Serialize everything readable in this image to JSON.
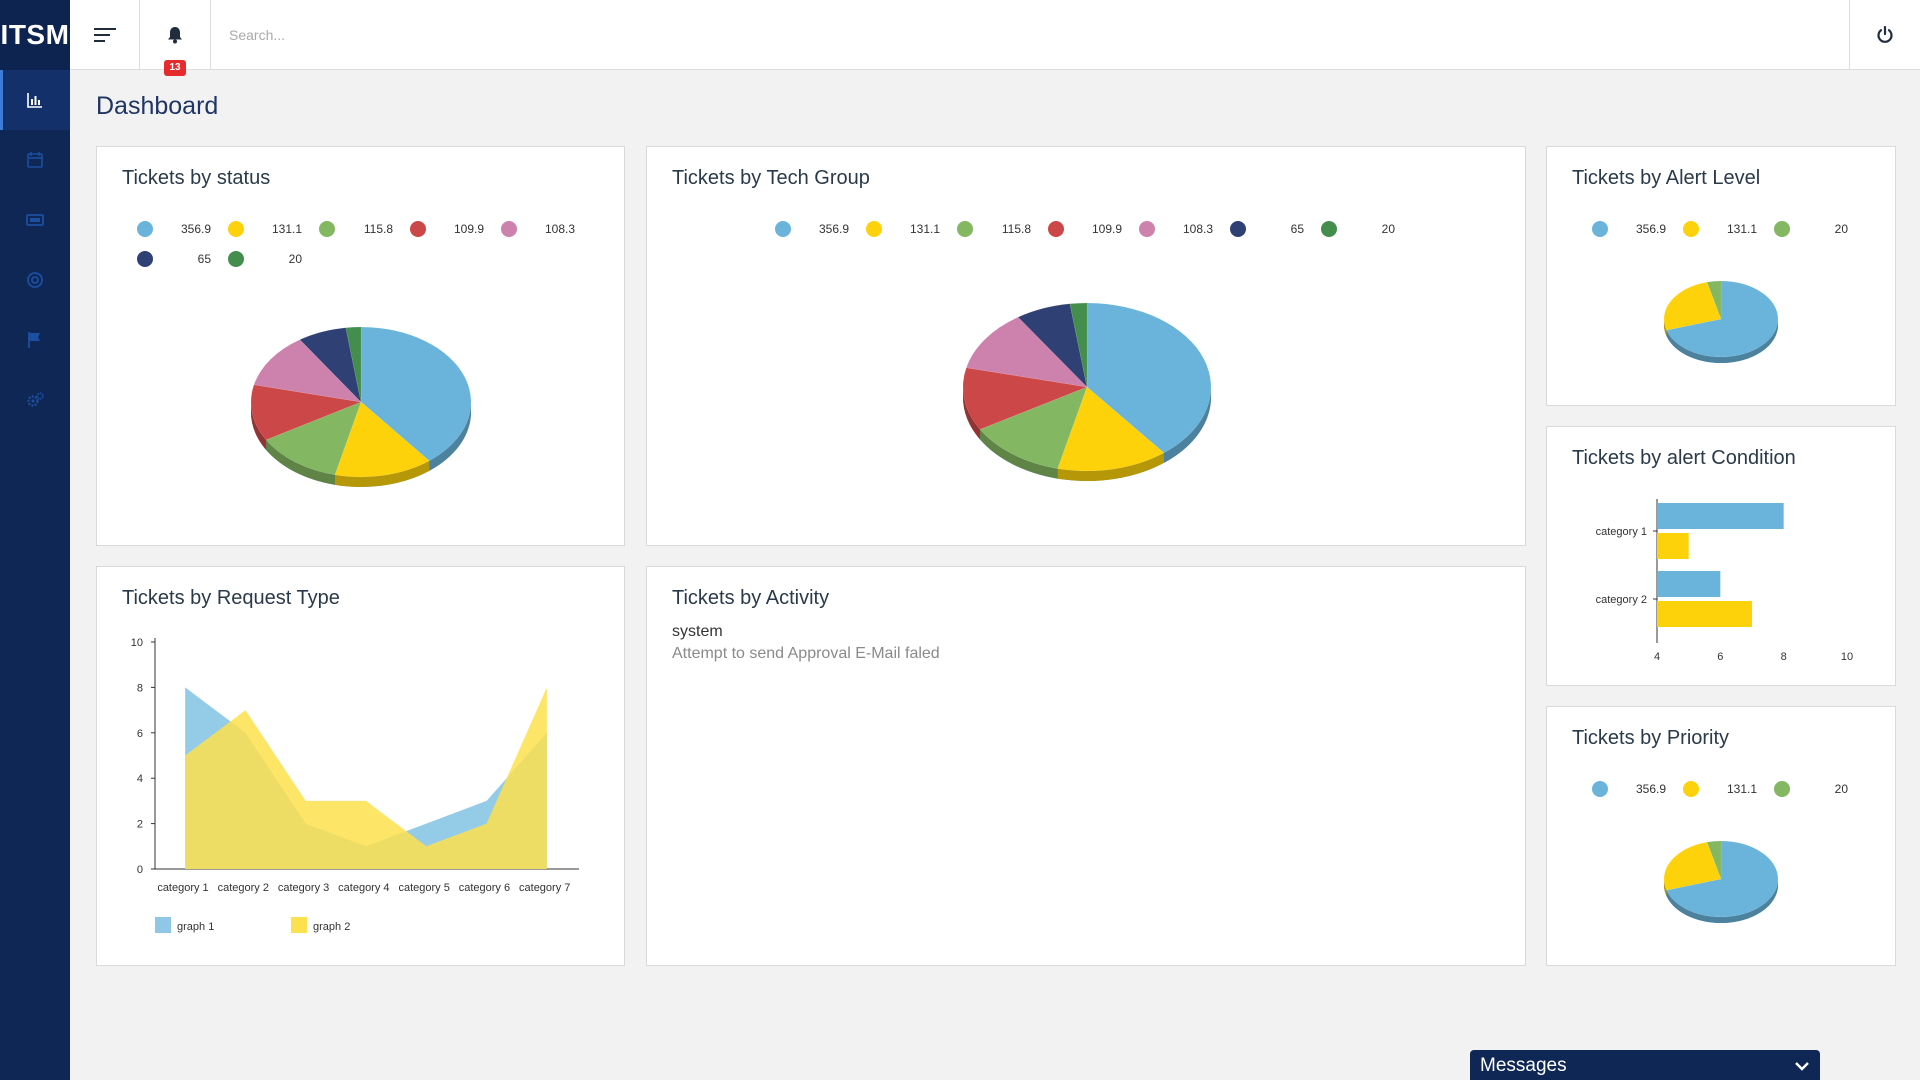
{
  "app": {
    "logo": "ITSM"
  },
  "colors": {
    "sidebar_bg": "#0f2755",
    "series": [
      "#6ab4dc",
      "#fdd20a",
      "#84b761",
      "#cc4748",
      "#cd82ad",
      "#2f4074",
      "#448e4d"
    ]
  },
  "sidebar": {
    "items": [
      {
        "icon": "bar-chart-icon",
        "active": true
      },
      {
        "icon": "calendar-icon",
        "active": false
      },
      {
        "icon": "ticket-icon",
        "active": false
      },
      {
        "icon": "support-icon",
        "active": false
      },
      {
        "icon": "flag-icon",
        "active": false
      },
      {
        "icon": "gears-icon",
        "active": false
      }
    ]
  },
  "topbar": {
    "notification_count": "13",
    "search_placeholder": "Search..."
  },
  "page": {
    "title": "Dashboard"
  },
  "cards": {
    "status": {
      "title": "Tickets by status",
      "legend": [
        "356.9",
        "131.1",
        "115.8",
        "109.9",
        "108.3",
        "65",
        "20"
      ]
    },
    "tech_group": {
      "title": "Tickets by Tech Group",
      "legend": [
        "356.9",
        "131.1",
        "115.8",
        "109.9",
        "108.3",
        "65",
        "20"
      ]
    },
    "alert_level": {
      "title": "Tickets by Alert Level",
      "legend": [
        "356.9",
        "131.1",
        "20"
      ]
    },
    "alert_condition": {
      "title": "Tickets by alert Condition"
    },
    "request_type": {
      "title": "Tickets by Request Type"
    },
    "activity": {
      "title": "Tickets by Activity",
      "user": "system",
      "message": "Attempt to send Approval E-Mail faled"
    },
    "priority": {
      "title": "Tickets by Priority",
      "legend": [
        "356.9",
        "131.1",
        "20"
      ]
    }
  },
  "chart_data": [
    {
      "type": "pie",
      "values": [
        356.9,
        131.1,
        115.8,
        109.9,
        108.3,
        65,
        20
      ],
      "labels": [
        "356.9",
        "131.1",
        "115.8",
        "109.9",
        "108.3",
        "65",
        "20"
      ],
      "colors": [
        "#6ab4dc",
        "#fdd20a",
        "#84b761",
        "#cc4748",
        "#cd82ad",
        "#2f4074",
        "#448e4d"
      ],
      "title": "Tickets by status"
    },
    {
      "type": "pie",
      "values": [
        356.9,
        131.1,
        115.8,
        109.9,
        108.3,
        65,
        20
      ],
      "labels": [
        "356.9",
        "131.1",
        "115.8",
        "109.9",
        "108.3",
        "65",
        "20"
      ],
      "colors": [
        "#6ab4dc",
        "#fdd20a",
        "#84b761",
        "#cc4748",
        "#cd82ad",
        "#2f4074",
        "#448e4d"
      ],
      "title": "Tickets by Tech Group"
    },
    {
      "type": "pie",
      "values": [
        356.9,
        131.1,
        20
      ],
      "labels": [
        "356.9",
        "131.1",
        "20"
      ],
      "colors": [
        "#6ab4dc",
        "#fdd20a",
        "#84b761"
      ],
      "title": "Tickets by Alert Level"
    },
    {
      "type": "bar",
      "orientation": "horizontal",
      "categories": [
        "category 1",
        "category 2"
      ],
      "series": [
        {
          "values": [
            8,
            6
          ],
          "color": "#6ab4dc"
        },
        {
          "values": [
            5,
            7
          ],
          "color": "#fdd20a"
        }
      ],
      "xlim": [
        4,
        10
      ],
      "xticks": [
        4,
        6,
        8,
        10
      ],
      "title": "Tickets by alert Condition"
    },
    {
      "type": "area",
      "categories": [
        "category 1",
        "category 2",
        "category 3",
        "category 4",
        "category 5",
        "category 6",
        "category 7"
      ],
      "series": [
        {
          "name": "graph 1",
          "values": [
            8,
            6,
            2,
            1,
            2,
            3,
            6
          ],
          "color": "#8ec8e6"
        },
        {
          "name": "graph 2",
          "values": [
            5,
            7,
            3,
            3,
            1,
            2,
            8
          ],
          "color": "#fde04d"
        }
      ],
      "ylim": [
        0,
        10
      ],
      "yticks": [
        0,
        2,
        4,
        6,
        8,
        10
      ],
      "legend": "bottom-left",
      "title": "Tickets by Request Type"
    },
    {
      "type": "pie",
      "values": [
        356.9,
        131.1,
        20
      ],
      "labels": [
        "356.9",
        "131.1",
        "20"
      ],
      "colors": [
        "#6ab4dc",
        "#fdd20a",
        "#84b761"
      ],
      "title": "Tickets by Priority"
    }
  ],
  "messages": {
    "label": "Messages"
  }
}
